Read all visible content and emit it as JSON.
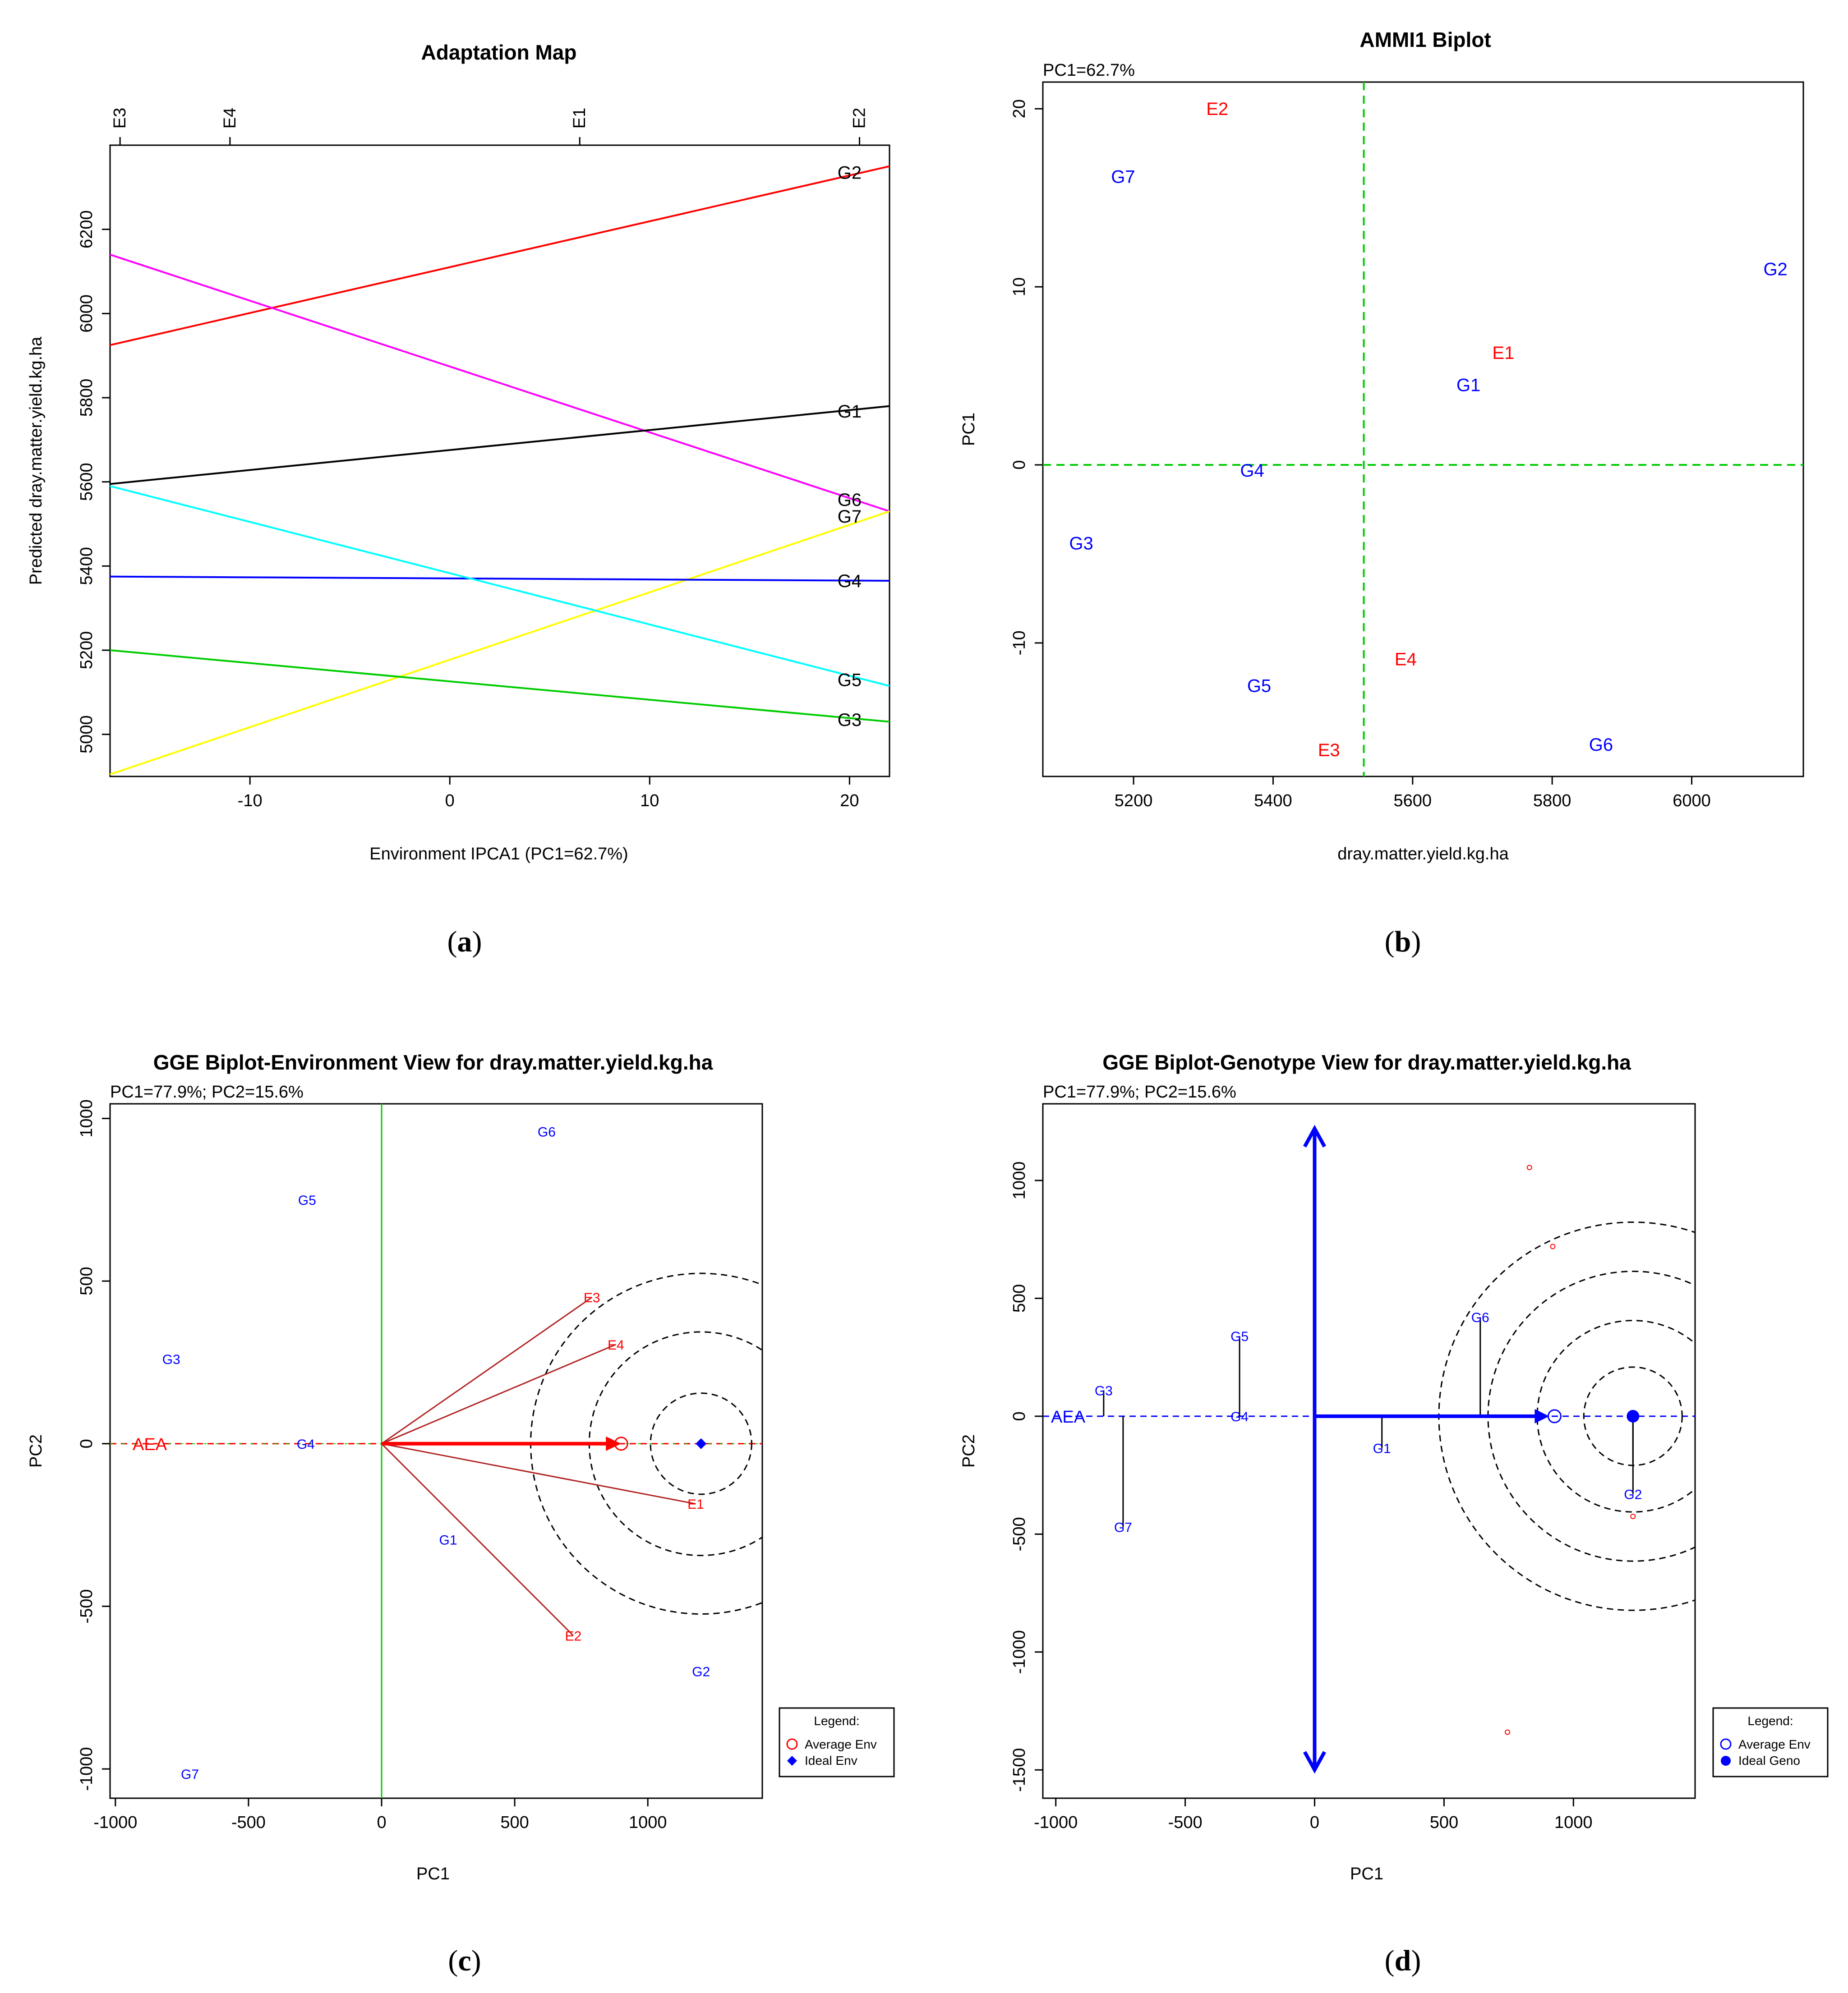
{
  "chart_data": [
    {
      "id": "a",
      "type": "line",
      "title": "Adaptation Map",
      "xlabel": "Environment IPCA1 (PC1=62.7%)",
      "ylabel": "Predicted dray.matter.yield.kg.ha",
      "xlim": [
        -17,
        22
      ],
      "ylim": [
        4900,
        6400
      ],
      "xticks": [
        -10,
        0,
        10,
        20
      ],
      "yticks": [
        5000,
        5200,
        5400,
        5600,
        5800,
        6000,
        6200
      ],
      "top_axis": [
        {
          "label": "E3",
          "x": -16.5
        },
        {
          "label": "E4",
          "x": -11
        },
        {
          "label": "E1",
          "x": 6.5
        },
        {
          "label": "E2",
          "x": 20.5
        }
      ],
      "series": [
        {
          "name": "G2",
          "color": "#ff0000",
          "y_start": 5925,
          "y_end": 6350,
          "label_y": 6335
        },
        {
          "name": "G6",
          "color": "#ff00ff",
          "y_start": 6140,
          "y_end": 5530,
          "label_y": 5558
        },
        {
          "name": "G1",
          "color": "#000000",
          "y_start": 5595,
          "y_end": 5780,
          "label_y": 5768
        },
        {
          "name": "G7",
          "color": "#ffff00",
          "y_start": 4905,
          "y_end": 5530,
          "label_y": 5518
        },
        {
          "name": "G4",
          "color": "#0000ff",
          "y_start": 5375,
          "y_end": 5365,
          "label_y": 5365
        },
        {
          "name": "G5",
          "color": "#00ffff",
          "y_start": 5590,
          "y_end": 5115,
          "label_y": 5130
        },
        {
          "name": "G3",
          "color": "#00cc00",
          "y_start": 5200,
          "y_end": 5030,
          "label_y": 5035
        }
      ],
      "caption": "a"
    },
    {
      "id": "b",
      "type": "scatter",
      "title": "AMMI1 Biplot",
      "subtitle": "PC1=62.7%",
      "xlabel": "dray.matter.yield.kg.ha",
      "ylabel": "PC1",
      "xlim": [
        5070,
        6160
      ],
      "ylim": [
        -17.5,
        21.5
      ],
      "xticks": [
        5200,
        5400,
        5600,
        5800,
        6000
      ],
      "yticks": [
        -10,
        0,
        10,
        20
      ],
      "ref_x": 5530,
      "ref_y": 0,
      "points": [
        {
          "label": "E2",
          "x": 5320,
          "y": 20,
          "group": "env"
        },
        {
          "label": "G7",
          "x": 5185,
          "y": 16.2,
          "group": "gen"
        },
        {
          "label": "G2",
          "x": 6120,
          "y": 11,
          "group": "gen"
        },
        {
          "label": "E1",
          "x": 5730,
          "y": 6.3,
          "group": "env"
        },
        {
          "label": "G1",
          "x": 5680,
          "y": 4.5,
          "group": "gen"
        },
        {
          "label": "G4",
          "x": 5370,
          "y": -0.3,
          "group": "gen"
        },
        {
          "label": "G3",
          "x": 5125,
          "y": -4.4,
          "group": "gen"
        },
        {
          "label": "E4",
          "x": 5590,
          "y": -10.9,
          "group": "env"
        },
        {
          "label": "G5",
          "x": 5380,
          "y": -12.4,
          "group": "gen"
        },
        {
          "label": "E3",
          "x": 5480,
          "y": -16,
          "group": "env"
        },
        {
          "label": "G6",
          "x": 5870,
          "y": -15.7,
          "group": "gen"
        }
      ],
      "caption": "b"
    },
    {
      "id": "c",
      "type": "scatter",
      "title": "GGE Biplot-Environment View for dray.matter.yield.kg.ha",
      "subtitle": "PC1=77.9%; PC2=15.6%",
      "xlabel": "PC1",
      "ylabel": "PC2",
      "xlim": [
        -1020,
        1430
      ],
      "ylim": [
        -1090,
        1045
      ],
      "xticks": [
        -1000,
        -500,
        0,
        500,
        1000
      ],
      "yticks": [
        -1000,
        -500,
        0,
        500,
        1000
      ],
      "genotypes": [
        {
          "label": "G6",
          "x": 620,
          "y": 960
        },
        {
          "label": "G5",
          "x": -280,
          "y": 750
        },
        {
          "label": "G3",
          "x": -790,
          "y": 260
        },
        {
          "label": "G4",
          "x": -285,
          "y": 0
        },
        {
          "label": "G1",
          "x": 250,
          "y": -295
        },
        {
          "label": "G2",
          "x": 1200,
          "y": -700
        },
        {
          "label": "G7",
          "x": -720,
          "y": -1015
        }
      ],
      "environments": [
        {
          "label": "E3",
          "x": 790,
          "y": 450
        },
        {
          "label": "E4",
          "x": 880,
          "y": 305
        },
        {
          "label": "E1",
          "x": 1180,
          "y": -185
        },
        {
          "label": "E2",
          "x": 720,
          "y": -590
        }
      ],
      "average_env": {
        "x": 900,
        "y": 0
      },
      "ideal": {
        "x": 1200,
        "y": 0
      },
      "circle_radii": [
        190,
        420,
        640
      ],
      "aea_label": "AEA",
      "legend": {
        "title": "Legend:",
        "items": [
          "Average Env",
          "Ideal Env"
        ]
      },
      "caption": "c"
    },
    {
      "id": "d",
      "type": "scatter",
      "title": "GGE Biplot-Genotype View for dray.matter.yield.kg.ha",
      "subtitle": "PC1=77.9%; PC2=15.6%",
      "xlabel": "PC1",
      "ylabel": "PC2",
      "xlim": [
        -1050,
        1470
      ],
      "ylim": [
        -1620,
        1325
      ],
      "xticks": [
        -1000,
        -500,
        0,
        500,
        1000
      ],
      "yticks": [
        -1500,
        -1000,
        -500,
        0,
        500,
        1000
      ],
      "genotypes": [
        {
          "label": "G6",
          "x": 640,
          "y": 420
        },
        {
          "label": "G5",
          "x": -290,
          "y": 340
        },
        {
          "label": "G3",
          "x": -815,
          "y": 110
        },
        {
          "label": "G4",
          "x": -290,
          "y": 0
        },
        {
          "label": "G1",
          "x": 260,
          "y": -135
        },
        {
          "label": "G7",
          "x": -740,
          "y": -470
        },
        {
          "label": "G2",
          "x": 1230,
          "y": -330
        }
      ],
      "environment_points": [
        {
          "x": 830,
          "y": 1055
        },
        {
          "x": 920,
          "y": 720
        },
        {
          "x": 1230,
          "y": -425
        },
        {
          "x": 745,
          "y": -1340
        }
      ],
      "average_env": {
        "x": 920,
        "y": 0
      },
      "ideal": {
        "x": 1230,
        "y": 0
      },
      "arrow_vertical": [
        -1500,
        1220
      ],
      "circle_radii": [
        190,
        370,
        560,
        750
      ],
      "aea_label": "AEA",
      "legend": {
        "title": "Legend:",
        "items": [
          "Average Env",
          "Ideal Geno"
        ]
      },
      "caption": "d"
    }
  ]
}
